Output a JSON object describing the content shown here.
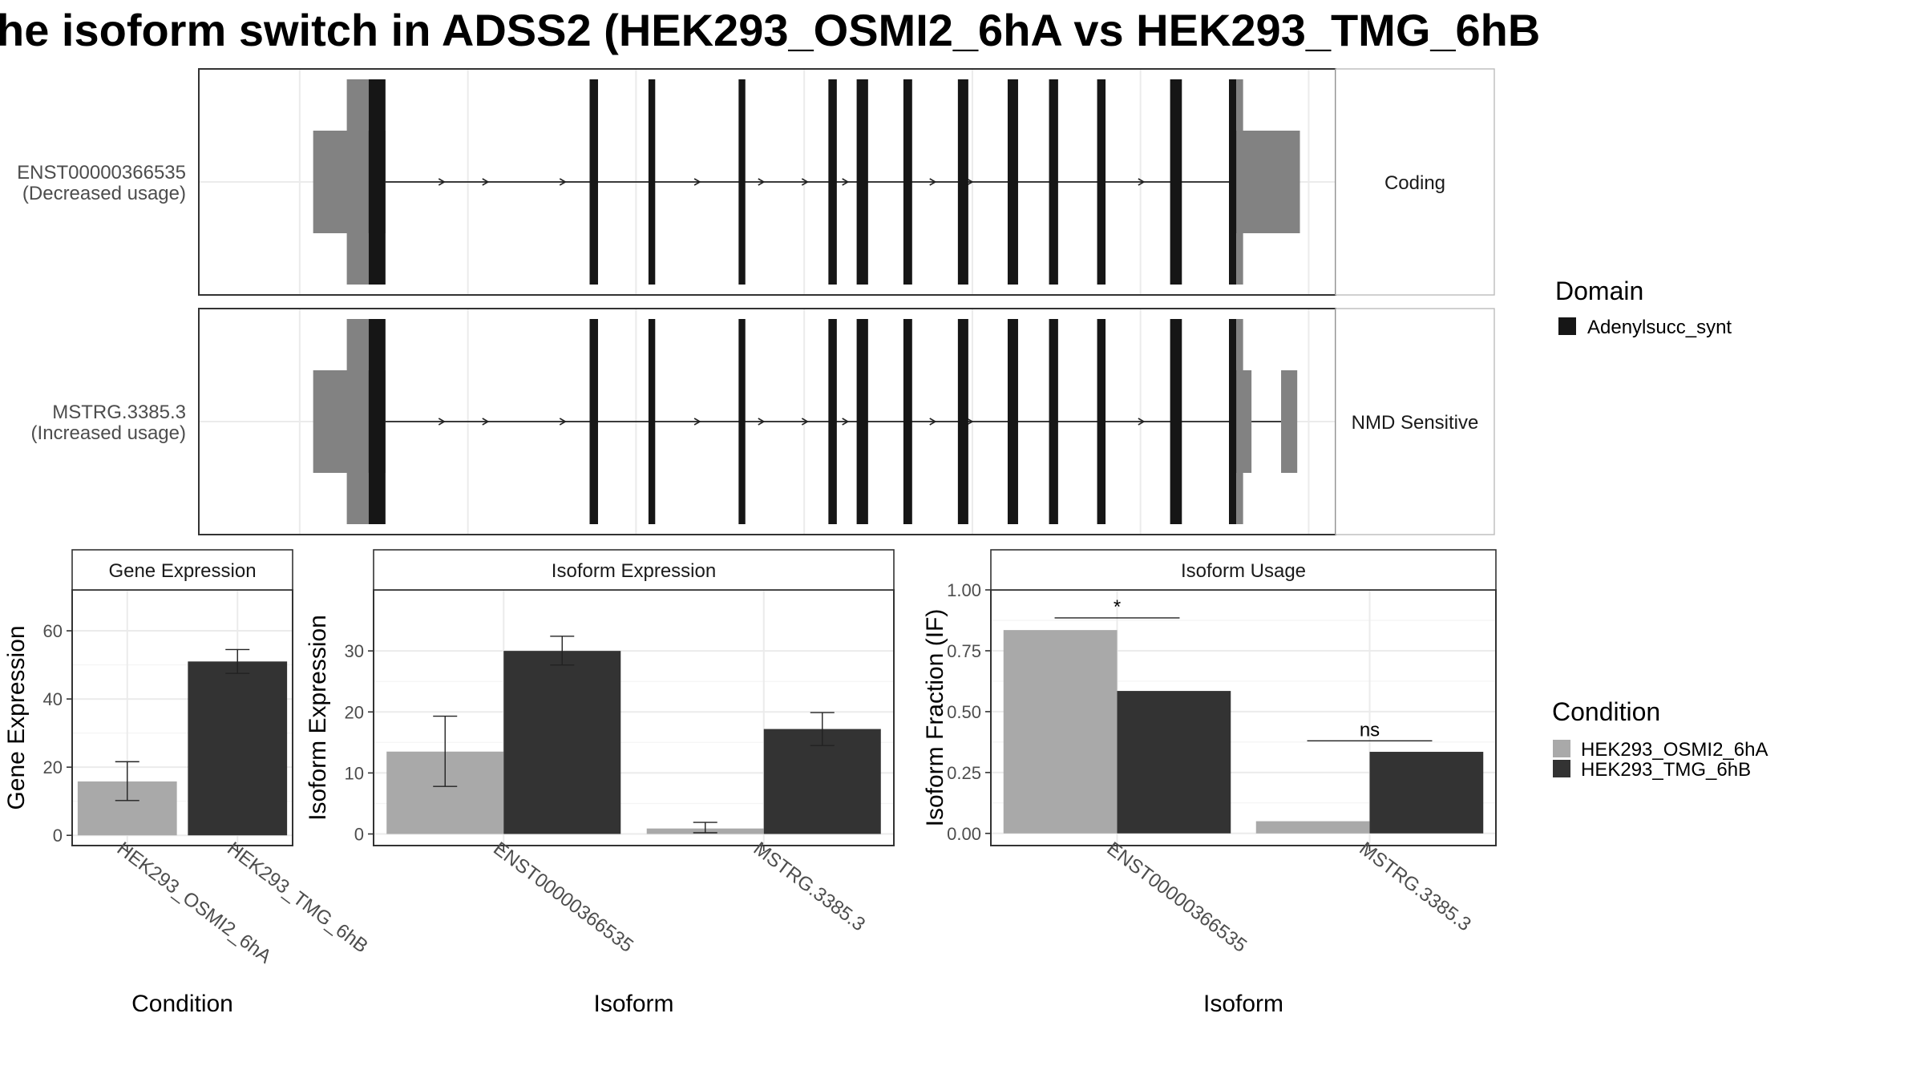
{
  "title": "he isoform switch in ADSS2 (HEK293_OSMI2_6hA vs HEK293_TMG_6hB",
  "colors": {
    "cond_a": "#a9a9a9",
    "cond_b": "#333333",
    "domain": "#161616",
    "utr": "#828282",
    "intron": "#222222",
    "panel_border": "#333333",
    "grid": "#ebebeb",
    "strip_fill": "#ffffff"
  },
  "transcripts": {
    "rows": [
      {
        "name": "ENST00000366535",
        "usage": "(Decreased usage)",
        "type": "Coding",
        "utr_left": [
          0.4,
          2.55
        ],
        "cds": [
          [
            2.05,
            2.55
          ],
          [
            8.62,
            8.87
          ],
          [
            10.37,
            10.57
          ],
          [
            13.05,
            13.25
          ],
          [
            15.72,
            15.97
          ],
          [
            16.56,
            16.9
          ],
          [
            17.95,
            18.21
          ],
          [
            19.57,
            19.88
          ],
          [
            21.05,
            21.36
          ],
          [
            22.28,
            22.55
          ],
          [
            23.71,
            23.96
          ],
          [
            25.88,
            26.23
          ],
          [
            27.63,
            27.85
          ]
        ],
        "utr_right": [
          [
            27.63,
            29.74
          ]
        ],
        "intron_span": [
          2.55,
          27.63
        ],
        "arrows": [
          4.3,
          5.6,
          7.9,
          11.9,
          13.8,
          15.1,
          16.3,
          18.9,
          20.0,
          25.1
        ]
      },
      {
        "name": "MSTRG.3385.3",
        "usage": "(Increased usage)",
        "type": "NMD Sensitive",
        "utr_left": [
          0.4,
          2.55
        ],
        "cds": [
          [
            2.05,
            2.55
          ],
          [
            8.62,
            8.87
          ],
          [
            10.37,
            10.57
          ],
          [
            13.05,
            13.25
          ],
          [
            15.72,
            15.97
          ],
          [
            16.56,
            16.9
          ],
          [
            17.95,
            18.21
          ],
          [
            19.57,
            19.88
          ],
          [
            21.05,
            21.36
          ],
          [
            22.28,
            22.55
          ],
          [
            23.71,
            23.96
          ],
          [
            25.88,
            26.23
          ],
          [
            27.63,
            27.85
          ]
        ],
        "utr_right": [
          [
            27.63,
            28.3
          ],
          [
            29.18,
            29.66
          ]
        ],
        "intron_span": [
          2.55,
          29.18
        ],
        "arrows": [
          4.3,
          5.6,
          7.9,
          11.9,
          13.8,
          15.1,
          16.3,
          18.9,
          20.0,
          25.1
        ]
      }
    ]
  },
  "legends": {
    "domain": {
      "title": "Domain",
      "items": [
        "Adenylsucc_synt"
      ]
    },
    "condition": {
      "title": "Condition",
      "items": [
        "HEK293_OSMI2_6hA",
        "HEK293_TMG_6hB"
      ]
    }
  },
  "chart_data": [
    {
      "type": "bar",
      "title": "Gene Expression",
      "xlabel": "Condition",
      "ylabel": "Gene Expression",
      "categories": [
        "HEK293_OSMI2_6hA",
        "HEK293_TMG_6hB"
      ],
      "values": [
        15.8,
        51.0
      ],
      "errors_low": [
        10.2,
        47.5
      ],
      "errors_high": [
        21.6,
        54.5
      ],
      "ylim": [
        -3,
        72
      ],
      "yticks": [
        "0",
        "20",
        "40",
        "60"
      ]
    },
    {
      "type": "bar",
      "title": "Isoform Expression",
      "xlabel": "Isoform",
      "ylabel": "Isoform Expression",
      "categories": [
        "ENST00000366535",
        "MSTRG.3385.3"
      ],
      "series": [
        {
          "name": "HEK293_OSMI2_6hA",
          "values": [
            13.5,
            0.9
          ],
          "errors_low": [
            7.8,
            0.2
          ],
          "errors_high": [
            19.3,
            1.9
          ]
        },
        {
          "name": "HEK293_TMG_6hB",
          "values": [
            30.0,
            17.2
          ],
          "errors_low": [
            27.7,
            14.5
          ],
          "errors_high": [
            32.4,
            19.9
          ]
        }
      ],
      "ylim": [
        -1.9,
        40
      ],
      "yticks": [
        "0",
        "10",
        "20",
        "30"
      ]
    },
    {
      "type": "bar",
      "title": "Isoform Usage",
      "xlabel": "Isoform",
      "ylabel": "Isoform Fraction (IF)",
      "categories": [
        "ENST00000366535",
        "MSTRG.3385.3"
      ],
      "series": [
        {
          "name": "HEK293_OSMI2_6hA",
          "values": [
            0.835,
            0.05
          ]
        },
        {
          "name": "HEK293_TMG_6hB",
          "values": [
            0.585,
            0.335
          ]
        }
      ],
      "significance": [
        "*",
        "ns"
      ],
      "sig_y": [
        0.885,
        0.38
      ],
      "ylim": [
        -0.05,
        1.0
      ],
      "yticks": [
        "0.00",
        "0.25",
        "0.50",
        "0.75",
        "1.00"
      ]
    }
  ]
}
